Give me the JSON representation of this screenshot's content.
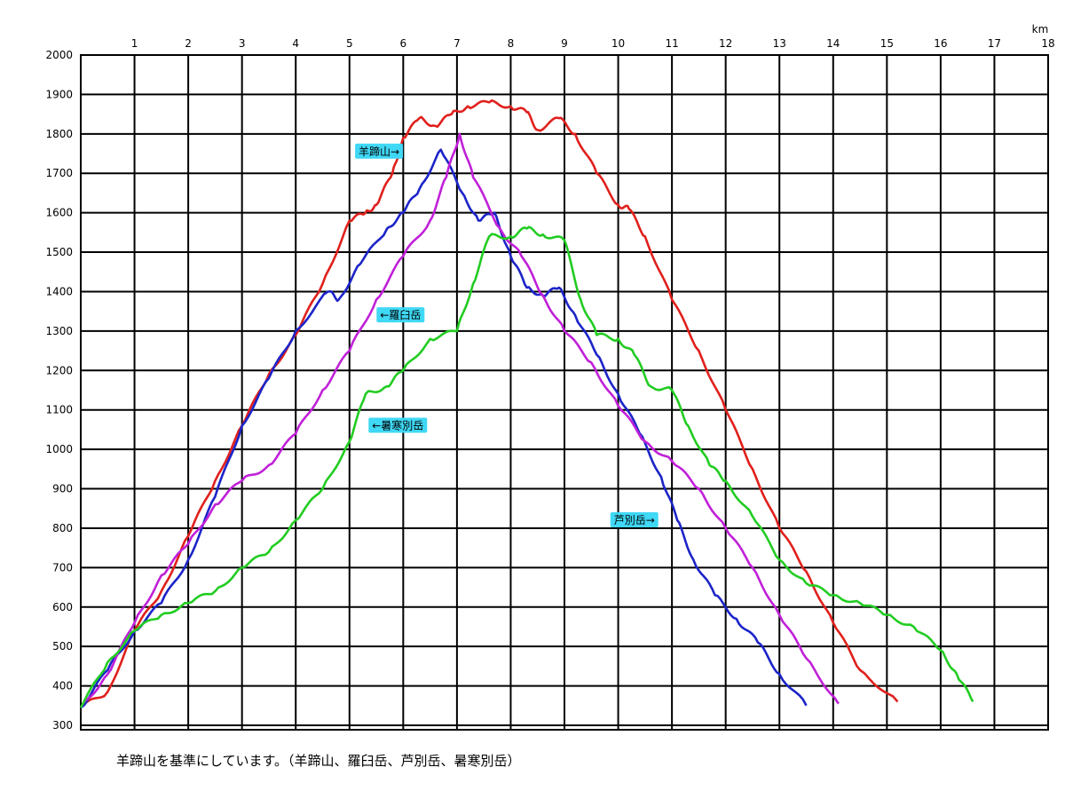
{
  "chart_data": {
    "type": "line",
    "xunit": "km",
    "xlim": [
      0,
      18
    ],
    "ylim": [
      300,
      2000
    ],
    "xticks": [
      1,
      2,
      3,
      4,
      5,
      6,
      7,
      8,
      9,
      10,
      11,
      12,
      13,
      14,
      15,
      16,
      17,
      18
    ],
    "yticks": [
      2000,
      1900,
      1800,
      1700,
      1600,
      1500,
      1400,
      1300,
      1200,
      1100,
      1000,
      900,
      800,
      700,
      600,
      500,
      400,
      300
    ],
    "grid": true,
    "series": [
      {
        "name": "羊蹄山",
        "color": "#e0201c",
        "points": [
          [
            0,
            345
          ],
          [
            0.5,
            385
          ],
          [
            1,
            540
          ],
          [
            1.5,
            640
          ],
          [
            2,
            780
          ],
          [
            2.5,
            920
          ],
          [
            3,
            1060
          ],
          [
            3.5,
            1190
          ],
          [
            4,
            1290
          ],
          [
            4.5,
            1420
          ],
          [
            5,
            1580
          ],
          [
            5.3,
            1600
          ],
          [
            5.5,
            1620
          ],
          [
            5.8,
            1700
          ],
          [
            6,
            1790
          ],
          [
            6.3,
            1840
          ],
          [
            6.6,
            1820
          ],
          [
            6.9,
            1850
          ],
          [
            7.2,
            1870
          ],
          [
            7.6,
            1880
          ],
          [
            8,
            1870
          ],
          [
            8.3,
            1855
          ],
          [
            8.5,
            1810
          ],
          [
            8.9,
            1840
          ],
          [
            9.2,
            1800
          ],
          [
            9.6,
            1700
          ],
          [
            10,
            1620
          ],
          [
            10.2,
            1610
          ],
          [
            10.5,
            1540
          ],
          [
            11,
            1380
          ],
          [
            11.5,
            1250
          ],
          [
            12,
            1100
          ],
          [
            12.5,
            950
          ],
          [
            13,
            800
          ],
          [
            13.5,
            690
          ],
          [
            14,
            560
          ],
          [
            14.5,
            440
          ],
          [
            15.2,
            360
          ]
        ]
      },
      {
        "name": "羅臼岳",
        "color": "#1c24c8",
        "points": [
          [
            0,
            345
          ],
          [
            0.5,
            440
          ],
          [
            1,
            540
          ],
          [
            1.5,
            610
          ],
          [
            2,
            720
          ],
          [
            2.5,
            880
          ],
          [
            3,
            1060
          ],
          [
            3.5,
            1180
          ],
          [
            4,
            1300
          ],
          [
            4.6,
            1400
          ],
          [
            4.8,
            1380
          ],
          [
            5.2,
            1470
          ],
          [
            5.7,
            1560
          ],
          [
            6,
            1600
          ],
          [
            6.3,
            1660
          ],
          [
            6.7,
            1760
          ],
          [
            7.1,
            1650
          ],
          [
            7.4,
            1580
          ],
          [
            7.7,
            1600
          ],
          [
            8,
            1490
          ],
          [
            8.3,
            1410
          ],
          [
            8.6,
            1390
          ],
          [
            8.9,
            1410
          ],
          [
            9.2,
            1340
          ],
          [
            9.6,
            1240
          ],
          [
            10,
            1140
          ],
          [
            10.4,
            1040
          ],
          [
            10.8,
            930
          ],
          [
            11.1,
            820
          ],
          [
            11.4,
            720
          ],
          [
            11.8,
            630
          ],
          [
            12.2,
            570
          ],
          [
            12.6,
            510
          ],
          [
            13,
            430
          ],
          [
            13.5,
            350
          ]
        ]
      },
      {
        "name": "芦別岳",
        "color": "#c020d8",
        "points": [
          [
            0,
            345
          ],
          [
            0.5,
            430
          ],
          [
            1,
            560
          ],
          [
            1.5,
            680
          ],
          [
            2,
            760
          ],
          [
            2.5,
            860
          ],
          [
            3,
            920
          ],
          [
            3.5,
            960
          ],
          [
            4,
            1040
          ],
          [
            4.5,
            1150
          ],
          [
            5,
            1250
          ],
          [
            5.5,
            1380
          ],
          [
            6,
            1490
          ],
          [
            6.5,
            1580
          ],
          [
            6.8,
            1690
          ],
          [
            7.05,
            1800
          ],
          [
            7.3,
            1690
          ],
          [
            7.8,
            1560
          ],
          [
            8.2,
            1490
          ],
          [
            8.6,
            1390
          ],
          [
            9,
            1300
          ],
          [
            9.5,
            1220
          ],
          [
            10,
            1110
          ],
          [
            10.5,
            1020
          ],
          [
            11,
            970
          ],
          [
            11.5,
            900
          ],
          [
            12,
            800
          ],
          [
            12.5,
            700
          ],
          [
            13,
            580
          ],
          [
            13.5,
            470
          ],
          [
            14.1,
            355
          ]
        ]
      },
      {
        "name": "暑寒別岳",
        "color": "#22cc22",
        "points": [
          [
            0,
            345
          ],
          [
            0.5,
            460
          ],
          [
            1,
            540
          ],
          [
            1.5,
            580
          ],
          [
            2,
            610
          ],
          [
            2.5,
            640
          ],
          [
            3,
            700
          ],
          [
            3.5,
            740
          ],
          [
            4,
            820
          ],
          [
            4.5,
            900
          ],
          [
            5,
            1020
          ],
          [
            5.3,
            1140
          ],
          [
            5.7,
            1160
          ],
          [
            6,
            1200
          ],
          [
            6.5,
            1280
          ],
          [
            7,
            1300
          ],
          [
            7.3,
            1420
          ],
          [
            7.6,
            1540
          ],
          [
            8,
            1540
          ],
          [
            8.3,
            1560
          ],
          [
            8.6,
            1545
          ],
          [
            9,
            1530
          ],
          [
            9.3,
            1380
          ],
          [
            9.6,
            1290
          ],
          [
            10,
            1280
          ],
          [
            10.3,
            1240
          ],
          [
            10.6,
            1160
          ],
          [
            11,
            1150
          ],
          [
            11.3,
            1060
          ],
          [
            11.7,
            960
          ],
          [
            12,
            920
          ],
          [
            12.5,
            830
          ],
          [
            13,
            720
          ],
          [
            13.5,
            660
          ],
          [
            14,
            630
          ],
          [
            14.5,
            610
          ],
          [
            15,
            580
          ],
          [
            15.5,
            550
          ],
          [
            16,
            490
          ],
          [
            16.3,
            430
          ],
          [
            16.6,
            360
          ]
        ]
      }
    ],
    "annotations": [
      {
        "text": "羊蹄山→",
        "x": 5.55,
        "y": 1755
      },
      {
        "text": "←羅臼岳",
        "x": 5.95,
        "y": 1340
      },
      {
        "text": "←暑寒別岳",
        "x": 5.9,
        "y": 1060
      },
      {
        "text": "芦別岳→",
        "x": 10.3,
        "y": 820
      }
    ]
  },
  "caption": "羊蹄山を基準にしています。（羊蹄山、羅臼岳、芦別岳、暑寒別岳）"
}
